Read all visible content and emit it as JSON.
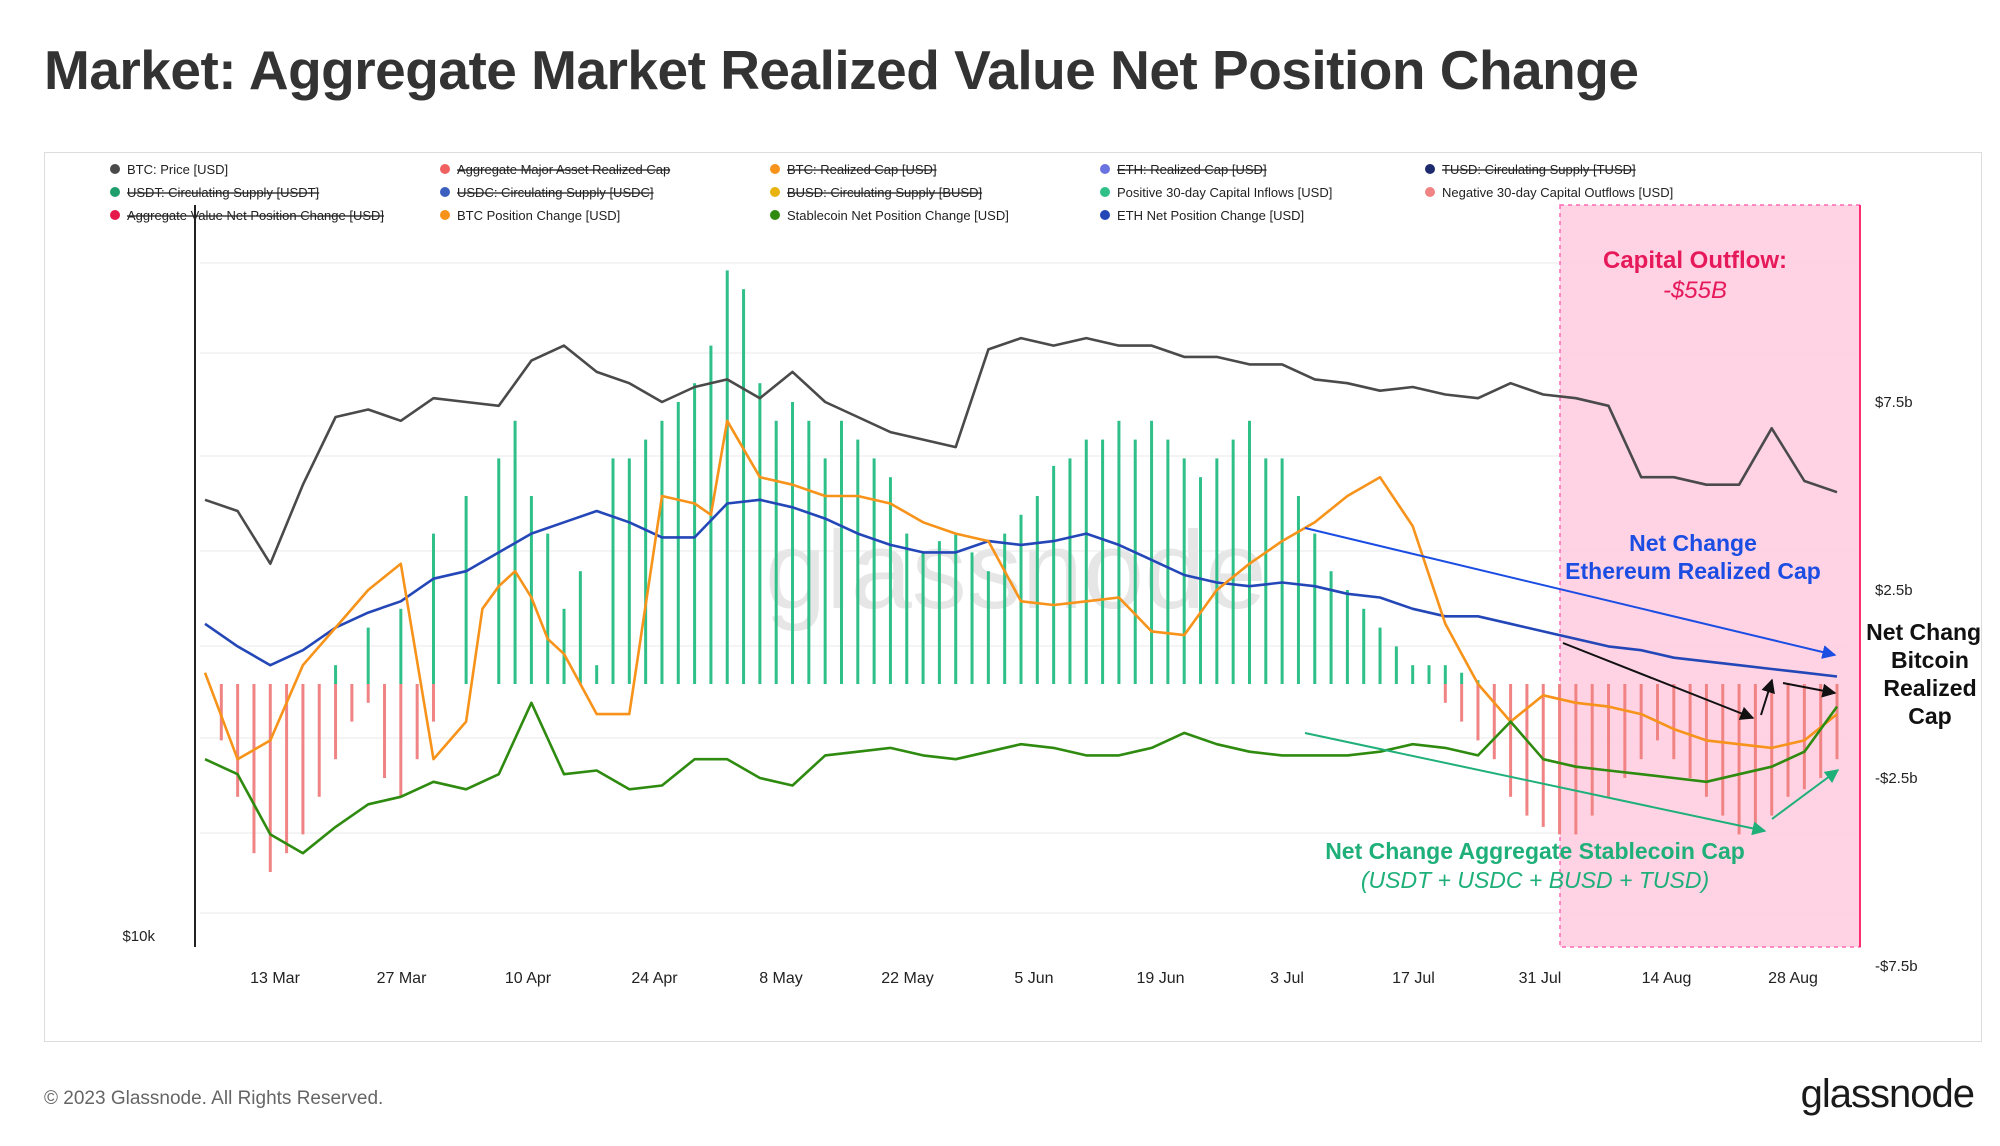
{
  "page": {
    "title": "Market: Aggregate Market Realized Value Net Position Change",
    "footer": "© 2023 Glassnode. All Rights Reserved.",
    "brand": "glassnode",
    "watermark": "glassnode"
  },
  "colors": {
    "price": "#4a4a4a",
    "btc": "#f7931a",
    "eth": "#2447b8",
    "stable": "#2e8b0f",
    "inflow": "#2fc08a",
    "outflow": "#f08484",
    "highlight": "#ff69b4",
    "annot_red": "#e6195a",
    "annot_blue": "#1b4de3",
    "annot_green": "#1fb07a",
    "annot_black": "#111111"
  },
  "chart_data": {
    "type": "line",
    "x_ticks": [
      "13 Mar",
      "27 Mar",
      "10 Apr",
      "24 Apr",
      "8 May",
      "22 May",
      "5 Jun",
      "19 Jun",
      "3 Jul",
      "17 Jul",
      "31 Jul",
      "14 Aug",
      "28 Aug"
    ],
    "y_left_label": "$10k",
    "y_right_ticks": [
      "$7.5b",
      "$2.5b",
      "-$2.5b",
      "-$7.5b"
    ],
    "y_right_values": [
      7.5,
      2.5,
      -2.5,
      -7.5
    ],
    "ylim_right": [
      -7.5,
      7.5
    ],
    "grid": true,
    "legend_position": "top",
    "legend": [
      {
        "label": "BTC: Price [USD]",
        "color": "#4a4a4a",
        "active": true
      },
      {
        "label": "Aggregate Major Asset Realized Cap",
        "color": "#f06060",
        "active": false
      },
      {
        "label": "BTC: Realized Cap [USD]",
        "color": "#f7931a",
        "active": false
      },
      {
        "label": "ETH: Realized Cap [USD]",
        "color": "#6b73e0",
        "active": false
      },
      {
        "label": "TUSD: Circulating Supply [TUSD]",
        "color": "#1e2a6e",
        "active": false
      },
      {
        "label": "USDT: Circulating Supply [USDT]",
        "color": "#1e9e6a",
        "active": false
      },
      {
        "label": "USDC: Circulating Supply [USDC]",
        "color": "#3a5fbf",
        "active": false
      },
      {
        "label": "BUSD: Circulating Supply [BUSD]",
        "color": "#e8b30f",
        "active": false
      },
      {
        "label": "Positive 30-day Capital Inflows [USD]",
        "color": "#2fc08a",
        "active": true
      },
      {
        "label": "Negative 30-day Capital Outflows [USD]",
        "color": "#f08484",
        "active": true
      },
      {
        "label": "Aggregate Value Net Position Change [USD]",
        "color": "#e6194b",
        "active": false
      },
      {
        "label": "BTC Position Change [USD]",
        "color": "#f7931a",
        "active": true
      },
      {
        "label": "Stablecoin Net Position Change [USD]",
        "color": "#2e8b0f",
        "active": true
      },
      {
        "label": "ETH Net Position Change [USD]",
        "color": "#2447b8",
        "active": true
      }
    ],
    "series": [
      {
        "name": "BTC: Price [USD]",
        "x": [
          0,
          2,
          4,
          6,
          8,
          10,
          12,
          14,
          16,
          18,
          20,
          22,
          24,
          26,
          28,
          30,
          32,
          34,
          36,
          38,
          40,
          42,
          44,
          46,
          48,
          50,
          52,
          54,
          56,
          58,
          60,
          62,
          64,
          66,
          68,
          70,
          72,
          74,
          76,
          78,
          80,
          82,
          84,
          86,
          88,
          90,
          92,
          94,
          96,
          98,
          100
        ],
        "values": [
          4.9,
          4.6,
          3.2,
          5.3,
          7.1,
          7.3,
          7.0,
          7.6,
          7.5,
          7.4,
          8.6,
          9.0,
          8.3,
          8.0,
          7.5,
          7.9,
          8.1,
          7.6,
          8.3,
          7.5,
          7.1,
          6.7,
          6.5,
          6.3,
          8.9,
          9.2,
          9.0,
          9.2,
          9.0,
          9.0,
          8.7,
          8.7,
          8.5,
          8.5,
          8.1,
          8.0,
          7.8,
          7.9,
          7.7,
          7.6,
          8.0,
          7.7,
          7.6,
          7.4,
          5.5,
          5.5,
          5.3,
          5.3,
          6.8,
          5.4,
          5.1
        ]
      },
      {
        "name": "Positive 30-day Capital Inflows [USD]",
        "x": [
          8,
          10,
          12,
          14,
          16,
          18,
          19,
          20,
          21,
          22,
          23,
          24,
          25,
          26,
          27,
          28,
          29,
          30,
          31,
          32,
          33,
          34,
          35,
          36,
          37,
          38,
          39,
          40,
          41,
          42,
          43,
          44,
          45,
          46,
          47,
          48,
          49,
          50,
          51,
          52,
          53,
          54,
          55,
          56,
          57,
          58,
          59,
          60,
          61,
          62,
          63,
          64,
          65,
          66,
          67,
          68,
          69,
          70,
          71,
          72,
          73,
          74,
          75,
          76,
          77,
          78
        ],
        "values": [
          0.5,
          1.5,
          2.0,
          4.0,
          5.0,
          6.0,
          7.0,
          5.0,
          4.0,
          2.0,
          3.0,
          0.5,
          6.0,
          6.0,
          6.5,
          7.0,
          7.5,
          8.0,
          9.0,
          11.0,
          10.5,
          8.0,
          7.0,
          7.5,
          7.0,
          6.0,
          7.0,
          6.5,
          6.0,
          5.5,
          4.0,
          3.5,
          3.8,
          4.0,
          3.5,
          3.0,
          4.0,
          4.5,
          5.0,
          5.8,
          6.0,
          6.5,
          6.5,
          7.0,
          6.5,
          7.0,
          6.5,
          6.0,
          5.5,
          6.0,
          6.5,
          7.0,
          6.0,
          6.0,
          5.0,
          4.0,
          3.0,
          2.5,
          2.0,
          1.5,
          1.0,
          0.5,
          0.5,
          0.5,
          0.3,
          0.1
        ]
      },
      {
        "name": "Negative 30-day Capital Outflows [USD]",
        "x": [
          1,
          2,
          3,
          4,
          5,
          6,
          7,
          8,
          9,
          10,
          11,
          12,
          13,
          14,
          15,
          16,
          17,
          18,
          19,
          20,
          21,
          22,
          23,
          24,
          25,
          26,
          27,
          28,
          29,
          30,
          31,
          32,
          33,
          34,
          35,
          36,
          37,
          38,
          39,
          40,
          41,
          42,
          43,
          44,
          45,
          46,
          47,
          48,
          49,
          50,
          51,
          52,
          53,
          54,
          55,
          56,
          57,
          58,
          59,
          60,
          61,
          62,
          63,
          64,
          65,
          66,
          67,
          68,
          69,
          70,
          71,
          72,
          73,
          74,
          75,
          76,
          77,
          78,
          79,
          80,
          81,
          82,
          83,
          84,
          85,
          86,
          87,
          88,
          89,
          90,
          91,
          92,
          93,
          94,
          95,
          96,
          97,
          98,
          99,
          100
        ],
        "values": [
          -1.5,
          -3.0,
          -4.5,
          -5.0,
          -4.5,
          -4.0,
          -3.0,
          -2.0,
          -1.0,
          -0.5,
          -2.5,
          -3.0,
          -2.0,
          -1.0,
          0,
          0,
          0,
          0,
          0,
          0,
          0,
          0,
          0,
          0,
          0,
          0,
          0,
          0,
          0,
          0,
          0,
          0,
          0,
          0,
          0,
          0,
          0,
          0,
          0,
          0,
          0,
          0,
          0,
          0,
          0,
          0,
          0,
          0,
          0,
          0,
          0,
          0,
          0,
          0,
          0,
          0,
          0,
          0,
          0,
          0,
          0,
          0,
          0,
          0,
          0,
          0,
          0,
          0,
          0,
          0,
          0,
          0,
          0,
          0,
          0,
          -0.5,
          -1.0,
          -1.5,
          -2.0,
          -3.0,
          -3.5,
          -3.8,
          -4.0,
          -4.0,
          -3.5,
          -3.0,
          -2.5,
          -2.0,
          -1.5,
          -2.0,
          -2.5,
          -3.0,
          -3.5,
          -4.0,
          -3.8,
          -3.5,
          -3.0,
          -2.8,
          -2.5,
          -2.0
        ]
      },
      {
        "name": "BTC Position Change [USD]",
        "x": [
          0,
          2,
          4,
          6,
          8,
          10,
          12,
          14,
          15,
          16,
          17,
          18,
          19,
          20,
          21,
          22,
          24,
          26,
          28,
          30,
          31,
          32,
          34,
          36,
          38,
          40,
          42,
          44,
          46,
          48,
          50,
          52,
          54,
          56,
          58,
          60,
          62,
          64,
          66,
          68,
          70,
          72,
          74,
          76,
          78,
          80,
          82,
          84,
          86,
          88,
          90,
          92,
          94,
          96,
          98,
          100
        ],
        "values": [
          0.3,
          -2.0,
          -1.5,
          0.5,
          1.5,
          2.5,
          3.2,
          -2.0,
          -1.5,
          -1.0,
          2.0,
          2.6,
          3.0,
          2.3,
          1.2,
          0.8,
          -0.8,
          -0.8,
          5.0,
          4.8,
          4.5,
          7.0,
          5.5,
          5.3,
          5.0,
          5.0,
          4.8,
          4.3,
          4.0,
          3.8,
          2.2,
          2.1,
          2.2,
          2.3,
          1.4,
          1.3,
          2.5,
          3.2,
          3.8,
          4.3,
          5.0,
          5.5,
          4.2,
          1.6,
          0,
          -1.0,
          -0.3,
          -0.5,
          -0.6,
          -0.8,
          -1.2,
          -1.5,
          -1.6,
          -1.7,
          -1.5,
          -0.8
        ]
      },
      {
        "name": "Stablecoin Net Position Change [USD]",
        "x": [
          0,
          2,
          4,
          6,
          8,
          10,
          12,
          14,
          16,
          18,
          20,
          22,
          24,
          26,
          28,
          30,
          32,
          34,
          36,
          38,
          40,
          42,
          44,
          46,
          48,
          50,
          52,
          54,
          56,
          58,
          60,
          62,
          64,
          66,
          68,
          70,
          72,
          74,
          76,
          78,
          80,
          82,
          84,
          86,
          88,
          90,
          92,
          94,
          96,
          98,
          100
        ],
        "values": [
          -2.0,
          -2.4,
          -4.0,
          -4.5,
          -3.8,
          -3.2,
          -3.0,
          -2.6,
          -2.8,
          -2.4,
          -0.5,
          -2.4,
          -2.3,
          -2.8,
          -2.7,
          -2.0,
          -2.0,
          -2.5,
          -2.7,
          -1.9,
          -1.8,
          -1.7,
          -1.9,
          -2.0,
          -1.8,
          -1.6,
          -1.7,
          -1.9,
          -1.9,
          -1.7,
          -1.3,
          -1.6,
          -1.8,
          -1.9,
          -1.9,
          -1.9,
          -1.8,
          -1.6,
          -1.7,
          -1.9,
          -1.0,
          -2.0,
          -2.2,
          -2.3,
          -2.4,
          -2.5,
          -2.6,
          -2.4,
          -2.2,
          -1.8,
          -0.6
        ]
      },
      {
        "name": "ETH Net Position Change [USD]",
        "x": [
          0,
          2,
          4,
          6,
          8,
          10,
          12,
          14,
          16,
          18,
          20,
          22,
          24,
          26,
          28,
          30,
          32,
          34,
          36,
          38,
          40,
          42,
          44,
          46,
          48,
          50,
          52,
          54,
          56,
          58,
          60,
          62,
          64,
          66,
          68,
          70,
          72,
          74,
          76,
          78,
          80,
          82,
          84,
          86,
          88,
          90,
          92,
          94,
          96,
          98,
          100
        ],
        "values": [
          1.6,
          1.0,
          0.5,
          0.9,
          1.5,
          1.9,
          2.2,
          2.8,
          3.0,
          3.5,
          4.0,
          4.3,
          4.6,
          4.3,
          3.9,
          3.9,
          4.8,
          4.9,
          4.7,
          4.4,
          4.0,
          3.7,
          3.5,
          3.5,
          3.8,
          3.7,
          3.8,
          4.0,
          3.7,
          3.3,
          2.9,
          2.7,
          2.6,
          2.7,
          2.6,
          2.4,
          2.3,
          2.0,
          1.8,
          1.8,
          1.6,
          1.4,
          1.2,
          1.0,
          0.9,
          0.7,
          0.6,
          0.5,
          0.4,
          0.3,
          0.2
        ]
      }
    ],
    "annotations": {
      "outflow_title": "Capital Outflow:",
      "outflow_value": "-$55B",
      "eth_line1": "Net Change",
      "eth_line2": "Ethereum Realized Cap",
      "btc_line1": "Net Change",
      "btc_line2": "Bitcoin",
      "btc_line3": "Realized",
      "btc_line4": "Cap",
      "stable_line1": "Net Change Aggregate Stablecoin Cap",
      "stable_line2": "(USDT + USDC + BUSD + TUSD)"
    }
  }
}
